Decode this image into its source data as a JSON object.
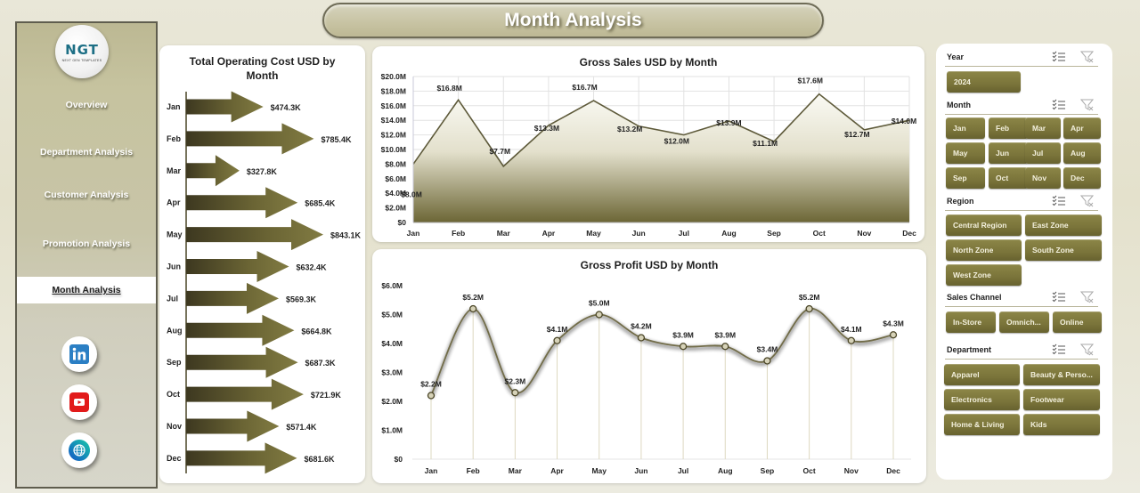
{
  "header": {
    "title": "Month Analysis"
  },
  "sidebar": {
    "logo": {
      "text": "NGT",
      "subtitle": "NEXT GEN TEMPLATES"
    },
    "items": [
      {
        "label": "Overview",
        "active": false
      },
      {
        "label": "Department Analysis",
        "active": false
      },
      {
        "label": "Customer Analysis",
        "active": false
      },
      {
        "label": "Promotion Analysis",
        "active": false
      },
      {
        "label": "Month Analysis",
        "active": true
      }
    ],
    "social": [
      {
        "icon": "linkedin-icon",
        "color": "#2b7fc4"
      },
      {
        "icon": "youtube-icon",
        "color": "#e21b1b"
      },
      {
        "icon": "globe-icon",
        "color": "#1677c8"
      }
    ]
  },
  "colors": {
    "accent": "#7a743a",
    "accent_dark": "#4a4526",
    "line": "#6b6540",
    "background": "#e6e3d0"
  },
  "chart_data": [
    {
      "type": "bar",
      "title": "Total Operating Cost USD by Month",
      "orientation": "horizontal",
      "shape": "arrow",
      "categories": [
        "Jan",
        "Feb",
        "Mar",
        "Apr",
        "May",
        "Jun",
        "Jul",
        "Aug",
        "Sep",
        "Oct",
        "Nov",
        "Dec"
      ],
      "values": [
        474.3,
        785.4,
        327.8,
        685.4,
        843.1,
        632.4,
        569.3,
        664.8,
        687.3,
        721.9,
        571.4,
        681.6
      ],
      "labels": [
        "$474.3K",
        "$785.4K",
        "$327.8K",
        "$685.4K",
        "$843.1K",
        "$632.4K",
        "$569.3K",
        "$664.8K",
        "$687.3K",
        "$721.9K",
        "$571.4K",
        "$681.6K"
      ],
      "unit": "USD thousands",
      "xlabel": "",
      "ylabel": "",
      "grid": false
    },
    {
      "type": "area",
      "title": "Gross Sales USD by Month",
      "categories": [
        "Jan",
        "Feb",
        "Mar",
        "Apr",
        "May",
        "Jun",
        "Jul",
        "Aug",
        "Sep",
        "Oct",
        "Nov",
        "Dec"
      ],
      "values": [
        8.0,
        16.8,
        7.7,
        13.3,
        16.7,
        13.2,
        12.0,
        13.9,
        11.1,
        17.6,
        12.7,
        14.0
      ],
      "labels": [
        "$8.0M",
        "$16.8M",
        "$7.7M",
        "$13.3M",
        "$16.7M",
        "$13.2M",
        "$12.0M",
        "$13.9M",
        "$11.1M",
        "$17.6M",
        "$12.7M",
        "$14.0M"
      ],
      "unit": "USD millions",
      "yticks": [
        "$0",
        "$2.0M",
        "$4.0M",
        "$6.0M",
        "$8.0M",
        "$10.0M",
        "$12.0M",
        "$14.0M",
        "$16.0M",
        "$18.0M",
        "$20.0M"
      ],
      "ylim": [
        0,
        20
      ],
      "grid": true
    },
    {
      "type": "line",
      "title": "Gross Profit USD by Month",
      "smooth": true,
      "categories": [
        "Jan",
        "Feb",
        "Mar",
        "Apr",
        "May",
        "Jun",
        "Jul",
        "Aug",
        "Sep",
        "Oct",
        "Nov",
        "Dec"
      ],
      "values": [
        2.2,
        5.2,
        2.3,
        4.1,
        5.0,
        4.2,
        3.9,
        3.9,
        3.4,
        5.2,
        4.1,
        4.3
      ],
      "labels": [
        "$2.2M",
        "$5.2M",
        "$2.3M",
        "$4.1M",
        "$5.0M",
        "$4.2M",
        "$3.9M",
        "$3.9M",
        "$3.4M",
        "$5.2M",
        "$4.1M",
        "$4.3M"
      ],
      "unit": "USD millions",
      "yticks": [
        "$0",
        "$1.0M",
        "$2.0M",
        "$3.0M",
        "$4.0M",
        "$5.0M",
        "$6.0M"
      ],
      "ylim": [
        0,
        6
      ],
      "grid": false
    }
  ],
  "slicers": {
    "year": {
      "label": "Year",
      "options": [
        "2024"
      ]
    },
    "month": {
      "label": "Month",
      "options": [
        "Jan",
        "Feb",
        "Mar",
        "Apr",
        "May",
        "Jun",
        "Jul",
        "Aug",
        "Sep",
        "Oct",
        "Nov",
        "Dec"
      ]
    },
    "region": {
      "label": "Region",
      "options": [
        "Central Region",
        "East Zone",
        "North Zone",
        "South Zone",
        "West Zone"
      ]
    },
    "sales_channel": {
      "label": "Sales Channel",
      "options": [
        "In-Store",
        "Omnich...",
        "Online"
      ]
    },
    "department": {
      "label": "Department",
      "options": [
        "Apparel",
        "Beauty & Perso...",
        "Electronics",
        "Footwear",
        "Home & Living",
        "Kids"
      ]
    }
  }
}
